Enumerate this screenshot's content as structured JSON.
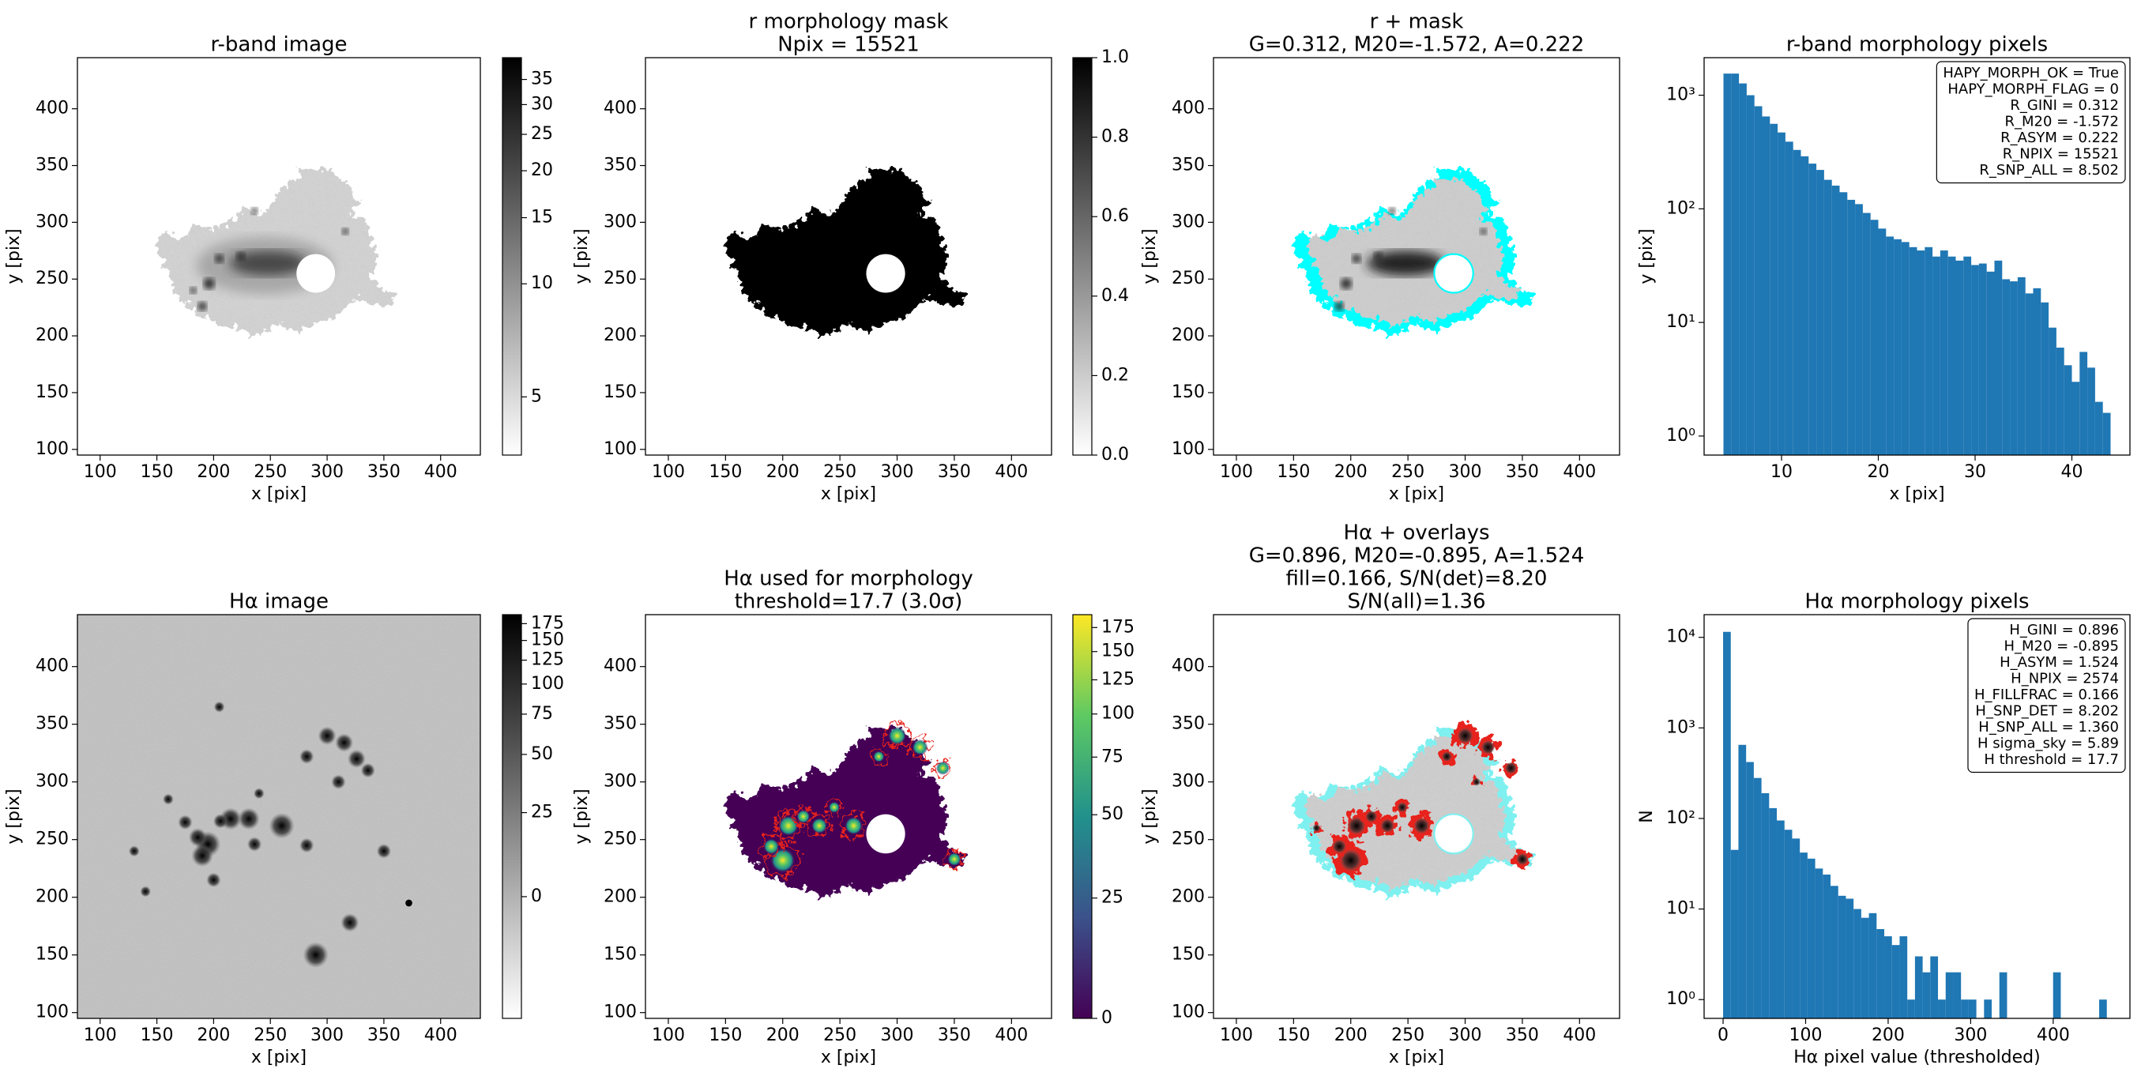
{
  "chart_data": [
    {
      "type": "image",
      "title": [
        "r-band image"
      ],
      "xlabel": "x [pix]",
      "ylabel": "y [pix]",
      "xlim": [
        80,
        435
      ],
      "ylim": [
        95,
        445
      ],
      "xticks": [
        100,
        150,
        200,
        250,
        300,
        350,
        400
      ],
      "yticks": [
        100,
        150,
        200,
        250,
        300,
        350,
        400
      ],
      "colorbar": {
        "cmap": "gray_r",
        "scale": "log",
        "clim": [
          3.5,
          40
        ],
        "ticks": [
          5,
          10,
          15,
          20,
          25,
          30,
          35
        ]
      }
    },
    {
      "type": "image",
      "title": [
        "r morphology mask",
        "Npix = 15521"
      ],
      "xlabel": "x [pix]",
      "ylabel": "y [pix]",
      "xlim": [
        80,
        435
      ],
      "ylim": [
        95,
        445
      ],
      "xticks": [
        100,
        150,
        200,
        250,
        300,
        350,
        400
      ],
      "yticks": [
        100,
        150,
        200,
        250,
        300,
        350,
        400
      ],
      "colorbar": {
        "cmap": "gray_r",
        "scale": "linear",
        "clim": [
          0,
          1
        ],
        "ticks": [
          {
            "value": 0,
            "label": "0.0"
          },
          {
            "value": 0.2,
            "label": "0.2"
          },
          {
            "value": 0.4,
            "label": "0.4"
          },
          {
            "value": 0.6,
            "label": "0.6"
          },
          {
            "value": 0.8,
            "label": "0.8"
          },
          {
            "value": 1,
            "label": "1.0"
          }
        ]
      }
    },
    {
      "type": "image",
      "title": [
        "r + mask",
        "G=0.312, M20=-1.572, A=0.222"
      ],
      "xlabel": "x [pix]",
      "ylabel": "y [pix]",
      "xlim": [
        80,
        435
      ],
      "ylim": [
        95,
        445
      ],
      "xticks": [
        100,
        150,
        200,
        250,
        300,
        350,
        400
      ],
      "yticks": [
        100,
        150,
        200,
        250,
        300,
        350,
        400
      ]
    },
    {
      "type": "histogram",
      "title": [
        "r-band morphology pixels"
      ],
      "xlabel": "x [pix]",
      "ylabel": "y [pix]",
      "color": "#1f77b4",
      "log_y": true,
      "bins": [
        4,
        4.8,
        5.6,
        6.4,
        7.2,
        8,
        8.8,
        9.6,
        10.4,
        11.2,
        12,
        12.8,
        13.6,
        14.4,
        15.2,
        16,
        16.8,
        17.6,
        18.4,
        19.2,
        20,
        20.8,
        21.6,
        22.4,
        23.2,
        24,
        24.8,
        25.6,
        26.4,
        27.2,
        28,
        28.8,
        29.6,
        30.4,
        31.2,
        32,
        32.8,
        33.6,
        34.4,
        35.2,
        36,
        36.8,
        37.6,
        38.4,
        39.2,
        40,
        40.8,
        41.6,
        42.4,
        43.2,
        44
      ],
      "counts": [
        1550,
        1550,
        1270,
        1000,
        800,
        650,
        560,
        470,
        390,
        330,
        290,
        250,
        220,
        180,
        160,
        140,
        120,
        110,
        92,
        80,
        67,
        57,
        54,
        51,
        46,
        43,
        46,
        38,
        43,
        38,
        35,
        38,
        32,
        33,
        28,
        35,
        24,
        23,
        25,
        18,
        20,
        15,
        9,
        6,
        4.2,
        3,
        5.5,
        4,
        2,
        1.6
      ],
      "xlim": [
        2,
        46
      ],
      "ylim": [
        0.68,
        2140
      ],
      "xticks": [
        10,
        20,
        30,
        40
      ],
      "yticks": [
        {
          "value": 1,
          "label": "10⁰"
        },
        {
          "value": 10,
          "label": "10¹"
        },
        {
          "value": 100,
          "label": "10²"
        },
        {
          "value": 1000,
          "label": "10³"
        }
      ],
      "annotation": [
        "HAPY_MORPH_OK = True",
        "HAPY_MORPH_FLAG = 0",
        "R_GINI = 0.312",
        "R_M20 = -1.572",
        "R_ASYM = 0.222",
        "R_NPIX = 15521",
        "R_SNP_ALL = 8.502"
      ]
    },
    {
      "type": "image",
      "title": [
        "Hα image"
      ],
      "xlabel": "x [pix]",
      "ylabel": "y [pix]",
      "xlim": [
        80,
        435
      ],
      "ylim": [
        95,
        445
      ],
      "xticks": [
        100,
        150,
        200,
        250,
        300,
        350,
        400
      ],
      "yticks": [
        100,
        150,
        200,
        250,
        300,
        350,
        400
      ],
      "colorbar": {
        "cmap": "gray_r",
        "scale": "asinh",
        "clim": [
          -40,
          190
        ],
        "ticks": [
          0,
          25,
          50,
          75,
          100,
          125,
          150,
          175
        ]
      }
    },
    {
      "type": "image",
      "title": [
        "Hα used for morphology",
        "threshold=17.7 (3.0σ)"
      ],
      "xlabel": "x [pix]",
      "ylabel": "y [pix]",
      "xlim": [
        80,
        435
      ],
      "ylim": [
        95,
        445
      ],
      "xticks": [
        100,
        150,
        200,
        250,
        300,
        350,
        400
      ],
      "yticks": [
        100,
        150,
        200,
        250,
        300,
        350,
        400
      ],
      "colorbar": {
        "cmap": "viridis",
        "scale": "asinh",
        "clim": [
          0,
          190
        ],
        "ticks": [
          0,
          25,
          50,
          75,
          100,
          125,
          150,
          175
        ]
      }
    },
    {
      "type": "image",
      "title": [
        "Hα + overlays",
        "G=0.896, M20=-0.895, A=1.524",
        "fill=0.166, S/N(det)=8.20",
        "S/N(all)=1.36"
      ],
      "xlabel": "x [pix]",
      "ylabel": "y [pix]",
      "xlim": [
        80,
        435
      ],
      "ylim": [
        95,
        445
      ],
      "xticks": [
        100,
        150,
        200,
        250,
        300,
        350,
        400
      ],
      "yticks": [
        100,
        150,
        200,
        250,
        300,
        350,
        400
      ]
    },
    {
      "type": "histogram",
      "title": [
        "Hα morphology pixels"
      ],
      "xlabel": "Hα pixel value (thresholded)",
      "ylabel": "N",
      "color": "#1f77b4",
      "log_y": true,
      "bins": [
        0,
        9.3,
        18.6,
        27.9,
        37.2,
        46.5,
        55.8,
        65.1,
        74.4,
        83.7,
        93,
        102.3,
        111.6,
        120.9,
        130.2,
        139.5,
        148.8,
        158.1,
        167.4,
        176.7,
        186,
        195.3,
        204.6,
        213.9,
        223.2,
        232.5,
        241.8,
        251.1,
        260.4,
        269.7,
        279,
        288.3,
        297.6,
        306.9,
        316.2,
        325.5,
        334.8,
        344.1,
        353.4,
        362.7,
        372,
        381.3,
        390.6,
        399.9,
        409.2,
        418.5,
        427.8,
        437.1,
        446.4,
        455.7,
        465
      ],
      "counts": [
        11500,
        45,
        650,
        420,
        280,
        190,
        130,
        95,
        75,
        60,
        42,
        36,
        28,
        24,
        18,
        14,
        13,
        10,
        8,
        9,
        6,
        5,
        4,
        5,
        1,
        3,
        2,
        3,
        1,
        2,
        2,
        1,
        1,
        0,
        1,
        0,
        2,
        0,
        0,
        0,
        0,
        0,
        0,
        2,
        0,
        0,
        0,
        0,
        0,
        1
      ],
      "xlim": [
        -23,
        493
      ],
      "ylim": [
        0.62,
        17800
      ],
      "xticks": [
        0,
        100,
        200,
        300,
        400
      ],
      "yticks": [
        {
          "value": 1,
          "label": "10⁰"
        },
        {
          "value": 10,
          "label": "10¹"
        },
        {
          "value": 100,
          "label": "10²"
        },
        {
          "value": 1000,
          "label": "10³"
        },
        {
          "value": 10000,
          "label": "10⁴"
        }
      ],
      "annotation": [
        "H_GINI = 0.896",
        "H_M20 = -0.895",
        "H_ASYM = 1.524",
        "H_NPIX = 2574",
        "H_FILLFRAC = 0.166",
        "H_SNP_DET = 8.202",
        "H_SNP_ALL = 1.360",
        "H sigma_sky = 5.89",
        "H threshold = 17.7"
      ]
    }
  ]
}
